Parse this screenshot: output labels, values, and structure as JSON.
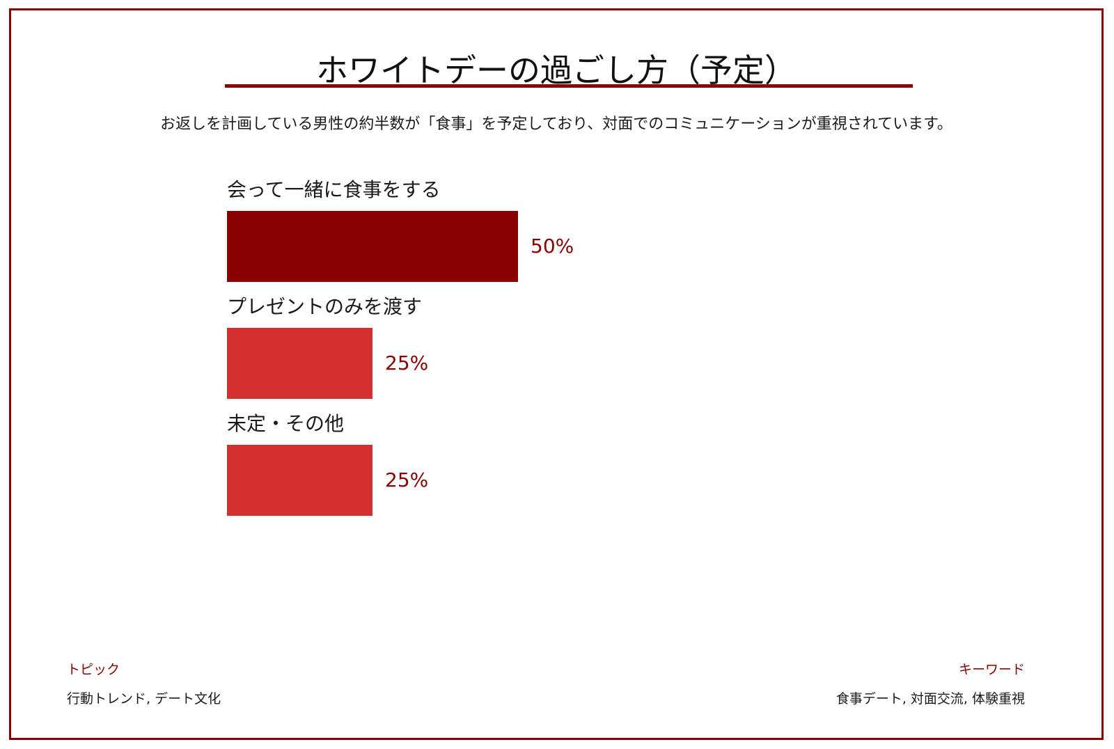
{
  "header": {
    "title": "ホワイトデーの過ごし方（予定）",
    "subtitle": "お返しを計画している男性の約半数が「食事」を予定しており、対面でのコミュニケーションが重視されています。"
  },
  "colors": {
    "primary": "#8b0000",
    "secondary": "#d32f2f",
    "border": "#8b0000"
  },
  "chart_data": {
    "type": "bar",
    "orientation": "horizontal",
    "categories": [
      "会って一緒に食事をする",
      "プレゼントのみを渡す",
      "未定・その他"
    ],
    "values": [
      50,
      25,
      25
    ],
    "value_labels": [
      "50%",
      "25%",
      "25%"
    ],
    "bar_colors": [
      "#8b0000",
      "#d32f2f",
      "#d32f2f"
    ],
    "unit": "%",
    "title": "ホワイトデーの過ごし方（予定）",
    "xlim": [
      0,
      100
    ],
    "grid": false,
    "legend": "none"
  },
  "footer": {
    "topic_heading": "トピック",
    "topic_text": "行動トレンド, デート文化",
    "keyword_heading": "キーワード",
    "keyword_text": "食事デート, 対面交流, 体験重視"
  }
}
